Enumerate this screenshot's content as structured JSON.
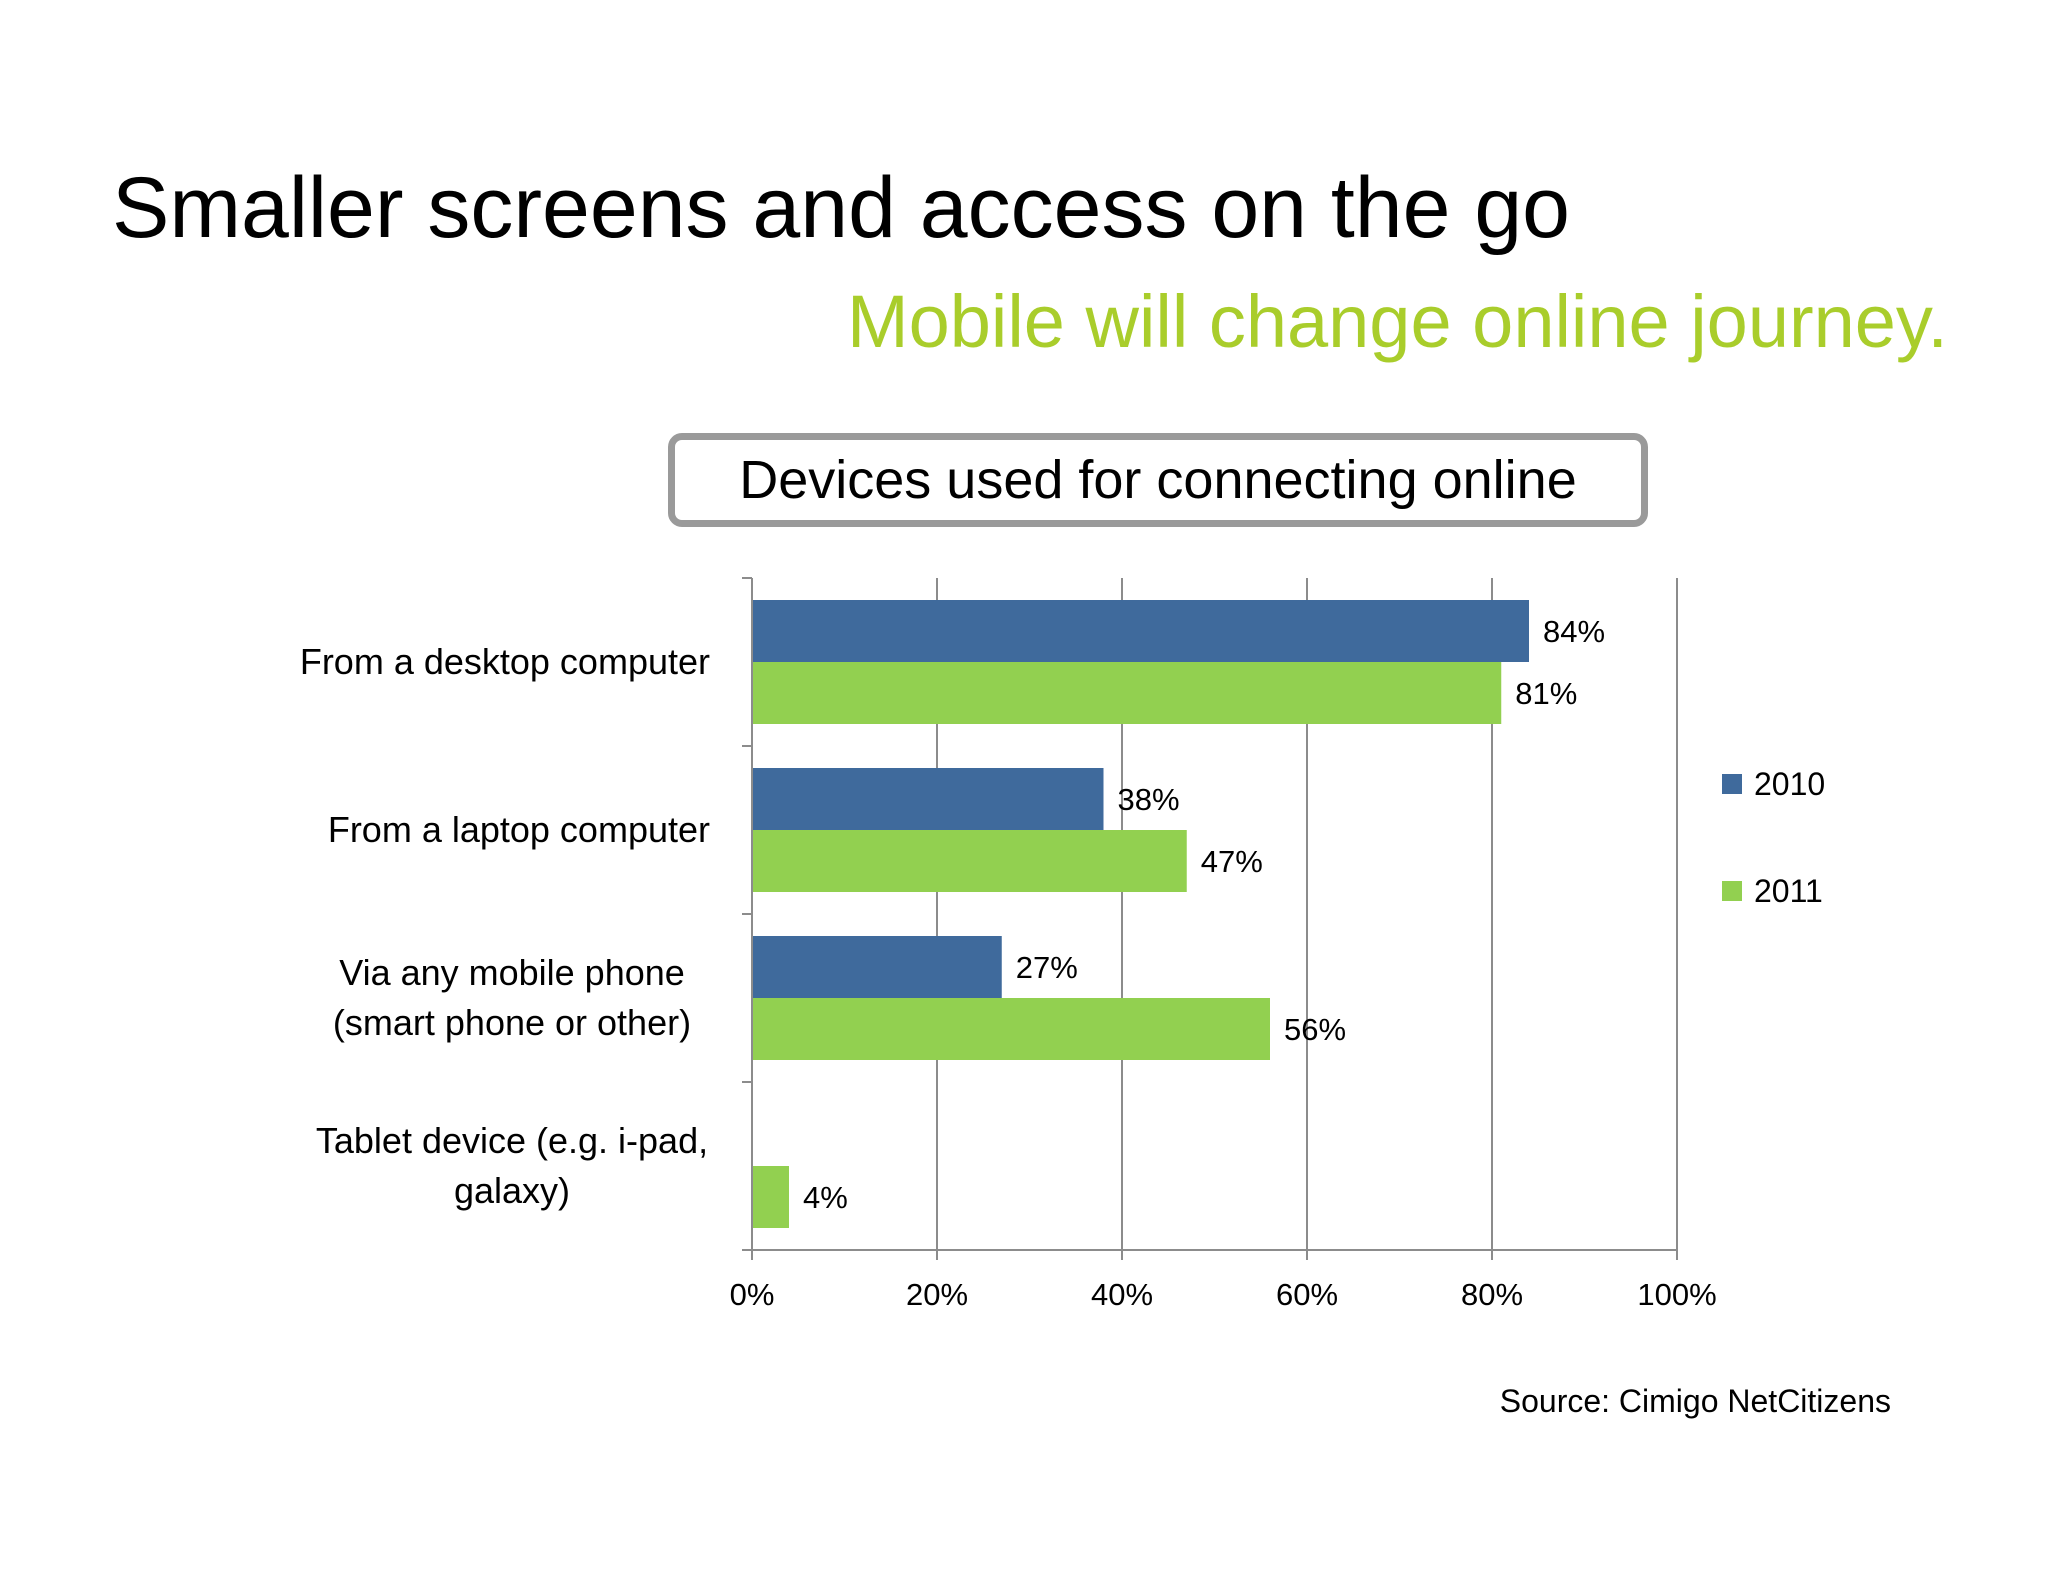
{
  "slide": {
    "title": "Smaller screens and access on the go",
    "subtitle": "Mobile will change online journey.",
    "source": "Source: Cimigo NetCitizens"
  },
  "colors": {
    "series_2010": "#3f6a9c",
    "series_2011": "#92d050",
    "subtitle": "#a9cd2b",
    "gridline": "#8c8c8c",
    "title_box_border": "#9a9a9a"
  },
  "chart_data": {
    "type": "bar",
    "orientation": "horizontal",
    "title": "Devices used for connecting online",
    "categories": [
      [
        "From a desktop computer"
      ],
      [
        "From a laptop computer"
      ],
      [
        "Via any mobile phone",
        "(smart phone or other)"
      ],
      [
        "Tablet device (e.g. i-pad,",
        "galaxy)"
      ]
    ],
    "series": [
      {
        "name": "2010",
        "values": [
          84,
          38,
          27,
          null
        ],
        "labels": [
          "84%",
          "38%",
          "27%",
          ""
        ]
      },
      {
        "name": "2011",
        "values": [
          81,
          47,
          56,
          4
        ],
        "labels": [
          "81%",
          "47%",
          "56%",
          "4%"
        ]
      }
    ],
    "xlim": [
      0,
      100
    ],
    "x_ticks": [
      0,
      20,
      40,
      60,
      80,
      100
    ],
    "x_tick_labels": [
      "0%",
      "20%",
      "40%",
      "60%",
      "80%",
      "100%"
    ],
    "xlabel": "",
    "ylabel": "",
    "grid": "vertical",
    "legend_position": "right"
  }
}
